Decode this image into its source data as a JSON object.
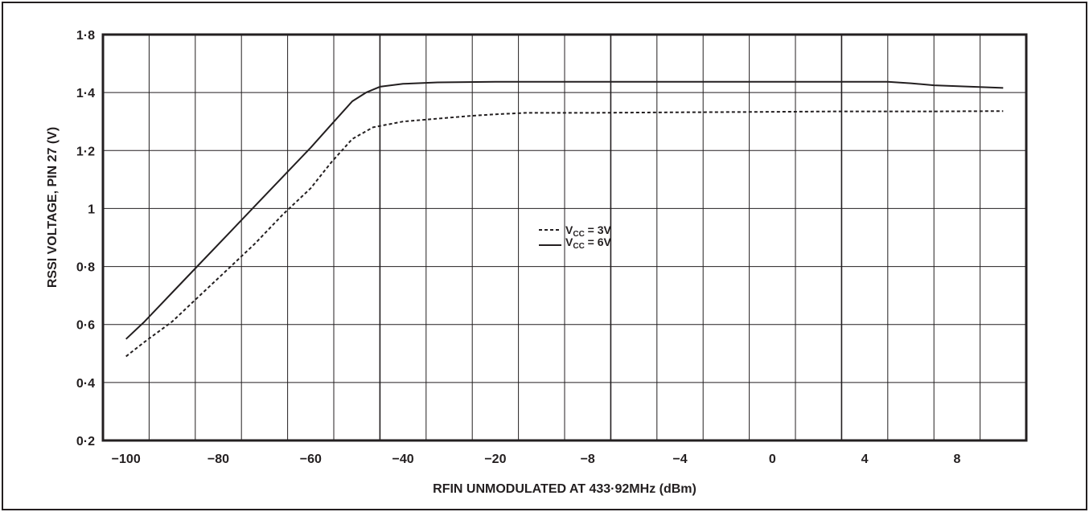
{
  "chart_data": {
    "type": "line",
    "title": "",
    "xlabel": "RFIN UNMODULATED AT 433·92MHz (dBm)",
    "ylabel": "RSSI VOLTAGE, PIN 27 (V)",
    "x_tick_labels": [
      "−100",
      "−80",
      "−60",
      "−40",
      "−20",
      "−8",
      "−4",
      "0",
      "4",
      "8"
    ],
    "y_tick_labels": [
      "0·2",
      "0·4",
      "0·6",
      "0·8",
      "1",
      "1·2",
      "1·4",
      "1·8"
    ],
    "ylim": [
      0.2,
      1.8
    ],
    "grid": true,
    "legend_position": "center",
    "series": [
      {
        "name_main": "V",
        "name_sub": "CC",
        "name_suffix": " = 3V",
        "style": "dashed",
        "color": "#231f20",
        "points": [
          [
            -100,
            0.49
          ],
          [
            -96,
            0.54
          ],
          [
            -90,
            0.61
          ],
          [
            -84,
            0.7
          ],
          [
            -78,
            0.79
          ],
          [
            -72,
            0.88
          ],
          [
            -66,
            0.98
          ],
          [
            -60,
            1.07
          ],
          [
            -54,
            1.16
          ],
          [
            -48,
            1.24
          ],
          [
            -42,
            1.28
          ],
          [
            -36,
            1.3
          ],
          [
            -30,
            1.31
          ],
          [
            -24,
            1.32
          ],
          [
            -20,
            1.325
          ],
          [
            -16,
            1.33
          ],
          [
            -8,
            1.33
          ],
          [
            -4,
            1.332
          ],
          [
            0,
            1.333
          ],
          [
            4,
            1.335
          ],
          [
            8,
            1.335
          ],
          [
            10,
            1.336
          ]
        ]
      },
      {
        "name_main": "V",
        "name_sub": "CC",
        "name_suffix": " = 6V",
        "style": "solid",
        "color": "#231f20",
        "points": [
          [
            -100,
            0.55
          ],
          [
            -96,
            0.61
          ],
          [
            -90,
            0.71
          ],
          [
            -84,
            0.81
          ],
          [
            -78,
            0.91
          ],
          [
            -72,
            1.01
          ],
          [
            -66,
            1.11
          ],
          [
            -60,
            1.21
          ],
          [
            -54,
            1.29
          ],
          [
            -48,
            1.37
          ],
          [
            -44,
            1.4
          ],
          [
            -40,
            1.42
          ],
          [
            -36,
            1.43
          ],
          [
            -30,
            1.435
          ],
          [
            -20,
            1.437
          ],
          [
            -8,
            1.437
          ],
          [
            -4,
            1.437
          ],
          [
            0,
            1.437
          ],
          [
            4,
            1.437
          ],
          [
            6,
            1.437
          ],
          [
            7,
            1.432
          ],
          [
            8,
            1.425
          ],
          [
            10,
            1.416
          ]
        ]
      }
    ]
  }
}
